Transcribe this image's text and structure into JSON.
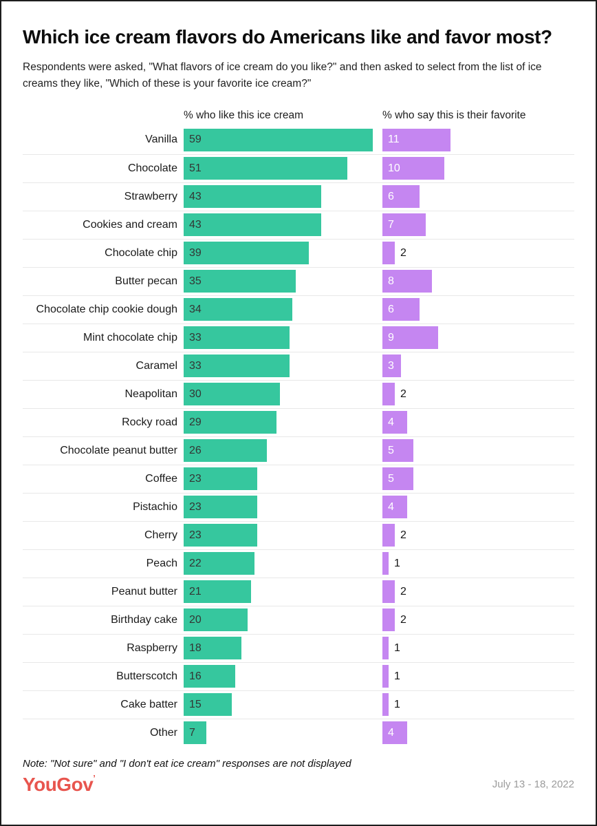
{
  "header": {
    "title": "Which ice cream flavors do Americans like and favor most?",
    "subtitle": "Respondents were asked, \"What flavors of ice cream do you like?\" and then asked to select from the list of ice creams they like, \"Which of these is your favorite ice cream?\""
  },
  "columns": {
    "like_label": "% who like this ice cream",
    "favorite_label": "% who say this is their favorite"
  },
  "chart_data": {
    "type": "bar",
    "title": "Which ice cream flavors do Americans like and favor most?",
    "categories": [
      "Vanilla",
      "Chocolate",
      "Strawberry",
      "Cookies and cream",
      "Chocolate chip",
      "Butter pecan",
      "Chocolate chip cookie dough",
      "Mint chocolate chip",
      "Caramel",
      "Neapolitan",
      "Rocky road",
      "Chocolate peanut butter",
      "Coffee",
      "Pistachio",
      "Cherry",
      "Peach",
      "Peanut butter",
      "Birthday cake",
      "Raspberry",
      "Butterscotch",
      "Cake batter",
      "Other"
    ],
    "series": [
      {
        "name": "% who like this ice cream",
        "color": "#36c79e",
        "values": [
          59,
          51,
          43,
          43,
          39,
          35,
          34,
          33,
          33,
          30,
          29,
          26,
          23,
          23,
          23,
          22,
          21,
          20,
          18,
          16,
          15,
          7
        ]
      },
      {
        "name": "% who say this is their favorite",
        "color": "#c586f1",
        "values": [
          11,
          10,
          6,
          7,
          2,
          8,
          6,
          9,
          3,
          2,
          4,
          5,
          5,
          4,
          2,
          1,
          2,
          2,
          1,
          1,
          1,
          4
        ]
      }
    ],
    "value_labels_shown": true,
    "legend_position": "column-headers",
    "grid": "row-separators"
  },
  "colors": {
    "like_bar": "#36c79e",
    "favorite_bar": "#c586f1",
    "logo": "#e8554e",
    "date_text": "#9b9b9b"
  },
  "footer": {
    "note": "Note: \"Not sure\" and \"I don't eat ice cream\" responses are not displayed",
    "logo_text": "YouGov",
    "logo_mark": "’",
    "date": "July 13 - 18, 2022"
  }
}
